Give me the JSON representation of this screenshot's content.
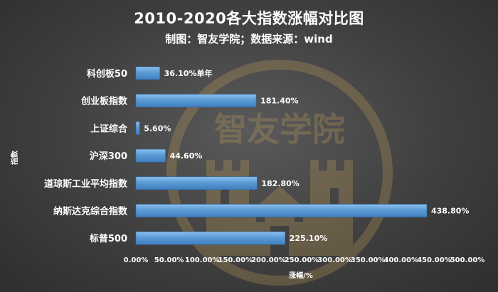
{
  "title": "2010-2020各大指数涨幅对比图",
  "subtitle": "制图：智友学院；数据来源：wind",
  "watermark_text": "智友学院",
  "chart_data": {
    "type": "bar",
    "orientation": "horizontal",
    "categories": [
      "科创板50",
      "创业板指数",
      "上证综合",
      "沪深300",
      "道琼斯工业平均指数",
      "纳斯达克综合指数",
      "标普500"
    ],
    "values": [
      36.1,
      181.4,
      5.6,
      44.6,
      182.8,
      438.8,
      225.1
    ],
    "data_labels": [
      "36.10%单年",
      "181.40%",
      "5.60%",
      "44.60%",
      "182.80%",
      "438.80%",
      "225.10%"
    ],
    "xlabel": "涨幅/%",
    "ylabel": "指数",
    "xlim": [
      0,
      500
    ],
    "xticks": [
      "0.00%",
      "50.00%",
      "100.00%",
      "150.00%",
      "200.00%",
      "250.00%",
      "300.00%",
      "350.00%",
      "400.00%",
      "450.00%",
      "500.00%"
    ],
    "grid": false,
    "bar_color": "#5b9bd5"
  }
}
